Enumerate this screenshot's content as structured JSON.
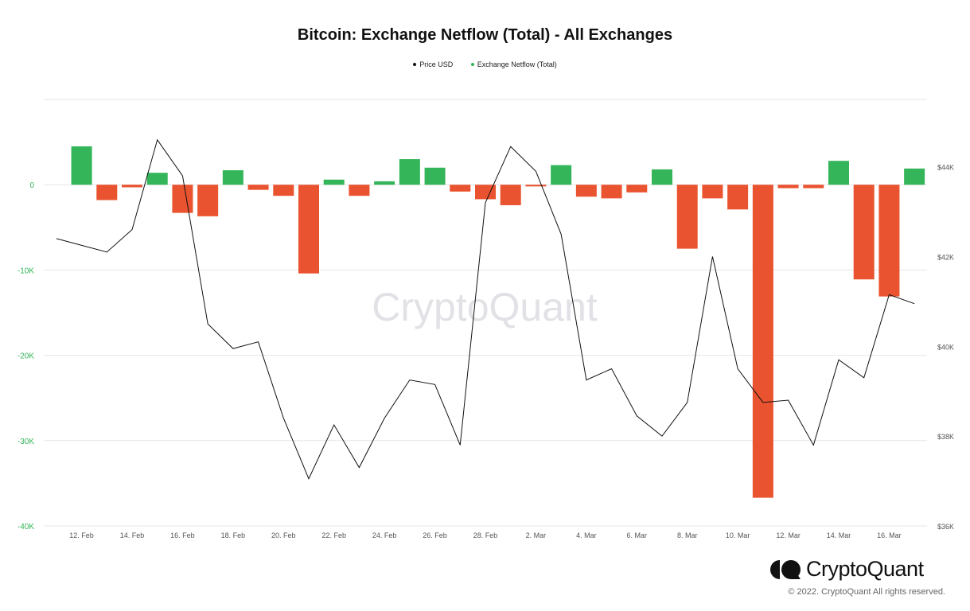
{
  "chart_data": {
    "type": "bar+line",
    "title": "Bitcoin: Exchange Netflow (Total) - All Exchanges",
    "legend": [
      {
        "name": "Price USD",
        "color": "#111111"
      },
      {
        "name": "Exchange Netflow (Total)",
        "color": "#34b55a"
      }
    ],
    "legend_position": "top-center",
    "grid": true,
    "x_tick_labels": [
      "12. Feb",
      "14. Feb",
      "16. Feb",
      "18. Feb",
      "20. Feb",
      "22. Feb",
      "24. Feb",
      "26. Feb",
      "28. Feb",
      "2. Mar",
      "4. Mar",
      "6. Mar",
      "8. Mar",
      "10. Mar",
      "12. Mar",
      "14. Mar",
      "16. Mar"
    ],
    "left_axis": {
      "ticks": [
        "0",
        "-10K",
        "-20K",
        "-30K",
        "-40K"
      ],
      "ylim": [
        -40000,
        10000
      ],
      "color": "#34b55a"
    },
    "right_axis": {
      "ticks": [
        "$44K",
        "$42K",
        "$40K",
        "$38K",
        "$36K"
      ],
      "ylim": [
        36000,
        45500
      ],
      "color": "#555555"
    },
    "x": [
      "11. Feb",
      "12. Feb",
      "13. Feb",
      "14. Feb",
      "15. Feb",
      "16. Feb",
      "17. Feb",
      "18. Feb",
      "19. Feb",
      "20. Feb",
      "21. Feb",
      "22. Feb",
      "23. Feb",
      "24. Feb",
      "25. Feb",
      "26. Feb",
      "27. Feb",
      "28. Feb",
      "1. Mar",
      "2. Mar",
      "3. Mar",
      "4. Mar",
      "5. Mar",
      "6. Mar",
      "7. Mar",
      "8. Mar",
      "9. Mar",
      "10. Mar",
      "11. Mar",
      "12. Mar",
      "13. Mar",
      "14. Mar",
      "15. Mar",
      "16. Mar",
      "17. Mar"
    ],
    "series": [
      {
        "name": "Exchange Netflow (Total)",
        "type": "bar",
        "axis": "left",
        "positive_color": "#34b55a",
        "negative_color": "#ea5330",
        "values": [
          null,
          4500,
          -1800,
          -300,
          1400,
          -3300,
          -3700,
          1700,
          -600,
          -1300,
          -10400,
          600,
          -1300,
          400,
          3000,
          2000,
          -800,
          -1700,
          -2400,
          -200,
          2300,
          -1400,
          -1600,
          -900,
          1800,
          -7500,
          -1600,
          -2900,
          -36700,
          -400,
          -400,
          2800,
          -11100,
          -13100,
          1900
        ]
      },
      {
        "name": "Price USD",
        "type": "line",
        "axis": "right",
        "color": "#111111",
        "values": [
          42400,
          42250,
          42100,
          42600,
          44600,
          43800,
          40500,
          39950,
          40100,
          38400,
          37050,
          38250,
          37300,
          38400,
          39250,
          39150,
          37800,
          43200,
          44450,
          43900,
          42500,
          39250,
          39500,
          38450,
          38000,
          38750,
          42000,
          39500,
          38750,
          38800,
          37800,
          39700,
          39300,
          41150,
          40950
        ]
      }
    ]
  },
  "watermark": "CryptoQuant",
  "brand": {
    "name": "CryptoQuant",
    "copyright": "© 2022. CryptoQuant All rights reserved."
  }
}
